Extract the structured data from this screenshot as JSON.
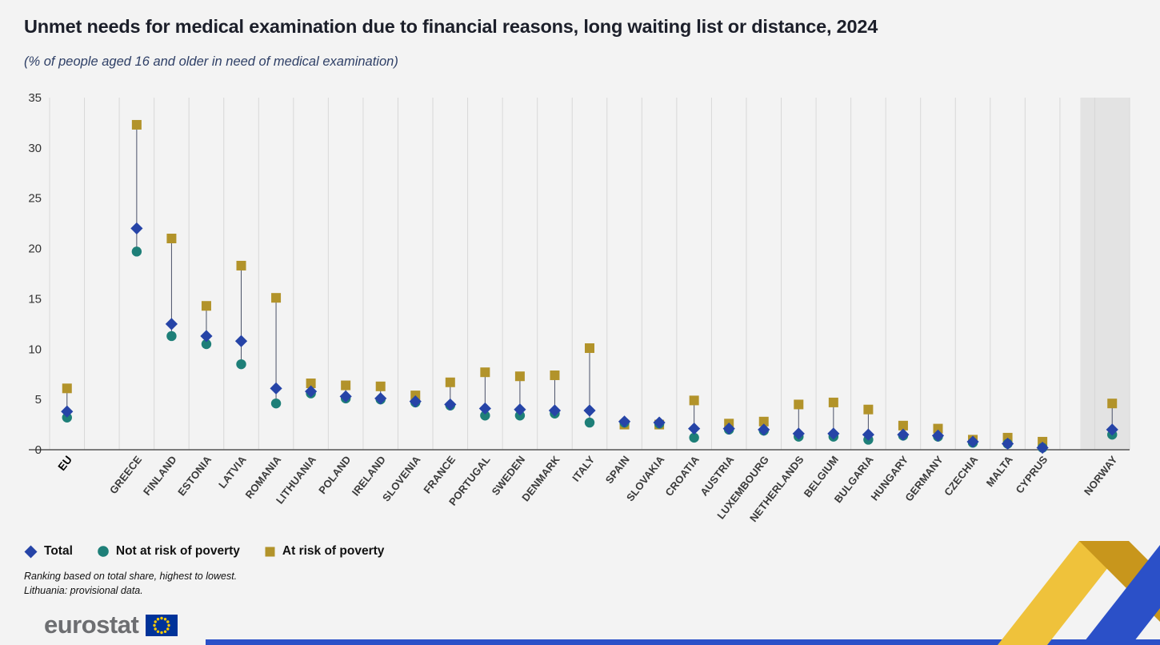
{
  "header": {
    "title": "Unmet needs for medical examination due to financial reasons, long waiting list or distance, 2024",
    "subtitle": "(% of people aged 16 and older in need of medical examination)"
  },
  "chart_data": {
    "type": "scatter",
    "variant": "dot-plot with vertical range lines per category",
    "title": "Unmet needs for medical examination due to financial reasons, long waiting list or distance, 2024",
    "subtitle": "(% of people aged 16 and older in need of medical examination)",
    "xlabel": "",
    "ylabel": "% of people aged 16 and older in need of medical examination",
    "ylim": [
      0,
      35
    ],
    "yticks": [
      0,
      5,
      10,
      15,
      20,
      25,
      30,
      35
    ],
    "grid": "vertical category separators only",
    "legend_position": "bottom-left",
    "highlighted_category": "NORWAY",
    "categories": [
      "EU",
      "",
      "GREECE",
      "FINLAND",
      "ESTONIA",
      "LATVIA",
      "ROMANIA",
      "LITHUANIA",
      "POLAND",
      "IRELAND",
      "SLOVENIA",
      "FRANCE",
      "PORTUGAL",
      "SWEDEN",
      "DENMARK",
      "ITALY",
      "SPAIN",
      "SLOVAKIA",
      "CROATIA",
      "AUSTRIA",
      "LUXEMBOURG",
      "NETHERLANDS",
      "BELGIUM",
      "BULGARIA",
      "HUNGARY",
      "GERMANY",
      "CZECHIA",
      "MALTA",
      "CYPRUS",
      "",
      "NORWAY"
    ],
    "series": [
      {
        "name": "Total",
        "marker": "diamond",
        "color": "#2644A7",
        "values": [
          3.8,
          null,
          22.0,
          12.5,
          11.3,
          10.8,
          6.1,
          5.8,
          5.3,
          5.1,
          4.8,
          4.5,
          4.1,
          4.0,
          3.9,
          3.9,
          2.8,
          2.7,
          2.1,
          2.1,
          2.0,
          1.6,
          1.6,
          1.5,
          1.5,
          1.4,
          0.8,
          0.6,
          0.2,
          null,
          2.0
        ]
      },
      {
        "name": "Not at risk of poverty",
        "marker": "circle",
        "color": "#1E7F78",
        "values": [
          3.2,
          null,
          19.7,
          11.3,
          10.5,
          8.5,
          4.6,
          5.6,
          5.1,
          5.0,
          4.7,
          4.4,
          3.4,
          3.4,
          3.6,
          2.7,
          2.7,
          2.6,
          1.2,
          2.0,
          1.9,
          1.3,
          1.3,
          1.0,
          1.4,
          1.3,
          0.7,
          0.6,
          0.2,
          null,
          1.5
        ]
      },
      {
        "name": "At risk of poverty",
        "marker": "square",
        "color": "#B2932A",
        "values": [
          6.1,
          null,
          32.3,
          21.0,
          14.3,
          18.3,
          15.1,
          6.6,
          6.4,
          6.3,
          5.4,
          6.7,
          7.7,
          7.3,
          7.4,
          10.1,
          2.5,
          2.5,
          4.9,
          2.6,
          2.8,
          4.5,
          4.7,
          4.0,
          2.4,
          2.1,
          1.0,
          1.2,
          0.8,
          null,
          4.6
        ]
      }
    ]
  },
  "footnotes": {
    "line1": "Ranking based on total share, highest to lowest.",
    "line2": "Lithuania: provisional data."
  },
  "footer": {
    "logo_text": "eurostat"
  },
  "colors": {
    "background": "#f3f3f3",
    "highlight_band": "#e3e3e3",
    "gridline": "#d8d8d8",
    "axis_line": "#555555",
    "range_line": "#4a5168",
    "title_text": "#1c1f2a",
    "subtitle_text": "#2e3f66",
    "eu_flag_blue": "#003399",
    "eu_flag_stars": "#FFCC00",
    "ribbon_yellow": "#EFC23B",
    "ribbon_gold_dark": "#C8961C",
    "ribbon_blue": "#2B50C8",
    "logo_text_gray": "#6D6E71"
  }
}
